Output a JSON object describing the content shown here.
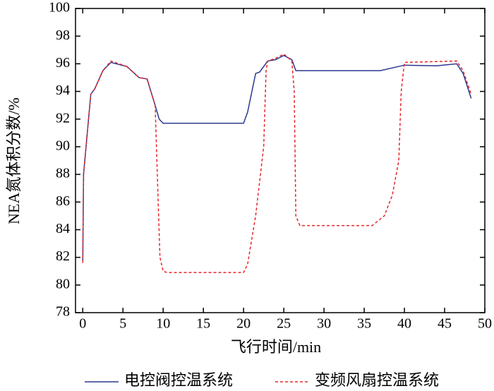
{
  "chart_data": {
    "type": "line",
    "xlabel": "飞行时间/min",
    "ylabel": "NEA氮体积分数/%",
    "xlim": [
      -0.9,
      50
    ],
    "xticks": [
      0,
      5,
      10,
      15,
      20,
      25,
      30,
      35,
      40,
      45,
      50
    ],
    "ylim": [
      78,
      100
    ],
    "yticks": [
      78,
      80,
      82,
      84,
      86,
      88,
      90,
      92,
      94,
      96,
      98,
      100
    ],
    "legend": "bottom",
    "series": [
      {
        "name": "电控阀控温系统",
        "color": "#2b3990",
        "dash": "solid",
        "x": [
          0,
          0.1,
          1,
          1.5,
          2.5,
          3.5,
          5.5,
          7,
          8,
          9,
          9.5,
          10,
          20,
          20.5,
          21.5,
          22,
          23,
          24,
          25,
          26,
          26.5,
          37,
          40,
          44,
          46.5,
          47.3,
          48.3
        ],
        "values": [
          81.6,
          88,
          93.8,
          94.2,
          95.5,
          96.1,
          95.8,
          95,
          94.9,
          93,
          92,
          91.7,
          91.7,
          92.5,
          95.3,
          95.4,
          96.2,
          96.3,
          96.6,
          96.3,
          95.5,
          95.5,
          95.9,
          95.85,
          96,
          95.3,
          93.5
        ]
      },
      {
        "name": "变频风扇控温系统",
        "color": "#e8262a",
        "dash": "dashed",
        "x": [
          0,
          0.1,
          1,
          1.5,
          2.5,
          3.5,
          5.5,
          7,
          8,
          9,
          9.6,
          10,
          10.5,
          20,
          20.5,
          21.5,
          22.5,
          22.8,
          23,
          24,
          25,
          26,
          26.3,
          26.5,
          27,
          36,
          37.5,
          38.5,
          39.3,
          39.6,
          40,
          46.5,
          47.3,
          48.3
        ],
        "values": [
          81.6,
          88,
          93.8,
          94.2,
          95.5,
          96.2,
          95.8,
          95,
          94.9,
          93,
          82,
          81,
          80.9,
          80.9,
          81.5,
          85,
          90,
          95.5,
          96.2,
          96.4,
          96.7,
          96.2,
          94,
          85,
          84.3,
          84.3,
          85,
          86.5,
          89,
          94,
          96.1,
          96.2,
          95.5,
          93.8
        ]
      }
    ]
  }
}
